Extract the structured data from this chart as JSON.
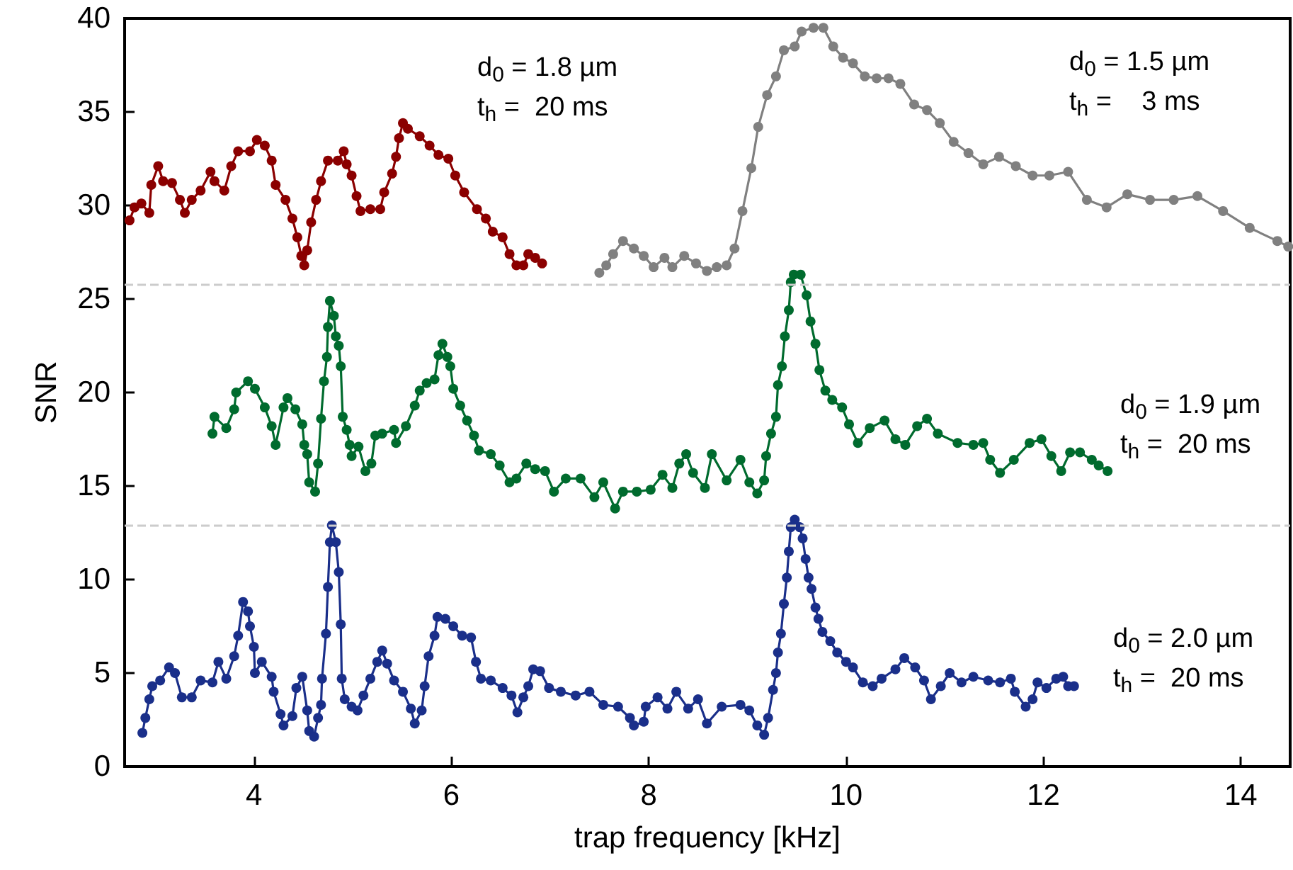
{
  "chart_data": {
    "type": "line",
    "xlabel": "trap frequency [kHz]",
    "ylabel": "SNR",
    "xlim": [
      2.69,
      14.5
    ],
    "xticks": [
      4,
      6,
      8,
      10,
      12,
      14
    ],
    "ylim": [
      0,
      40
    ],
    "yticks": [
      0,
      5,
      10,
      15,
      20,
      25,
      30,
      35,
      40
    ],
    "grid": false,
    "marker": "circle",
    "line_style": "solid",
    "series": [
      {
        "color": "#8b0000",
        "x": [
          2.74,
          2.79,
          2.86,
          2.94,
          2.96,
          3.03,
          3.08,
          3.17,
          3.25,
          3.3,
          3.37,
          3.46,
          3.56,
          3.6,
          3.7,
          3.77,
          3.84,
          3.96,
          4.03,
          4.11,
          4.18,
          4.22,
          4.32,
          4.39,
          4.44,
          4.48,
          4.51,
          4.54,
          4.58,
          4.63,
          4.68,
          4.75,
          4.85,
          4.91,
          4.94,
          4.99,
          5.04,
          5.08,
          5.18,
          5.28,
          5.32,
          5.4,
          5.44,
          5.47,
          5.51,
          5.56,
          5.68,
          5.78,
          5.87,
          5.97,
          6.04,
          6.13,
          6.26,
          6.35,
          6.42,
          6.52,
          6.59,
          6.66,
          6.73,
          6.78,
          6.85,
          6.92
        ],
        "values": [
          29.2,
          29.9,
          30.1,
          29.6,
          31.1,
          32.1,
          31.3,
          31.2,
          30.3,
          29.6,
          30.3,
          30.8,
          31.8,
          31.3,
          30.8,
          32.1,
          32.9,
          32.9,
          33.5,
          33.2,
          32.4,
          31.1,
          30.3,
          29.3,
          28.3,
          27.3,
          26.8,
          27.6,
          29.1,
          30.3,
          31.3,
          32.4,
          32.4,
          32.9,
          32.2,
          31.6,
          30.5,
          29.7,
          29.8,
          29.8,
          30.7,
          31.7,
          32.6,
          33.6,
          34.4,
          34.1,
          33.7,
          33.2,
          32.7,
          32.5,
          31.6,
          30.7,
          29.8,
          29.3,
          28.6,
          28.3,
          27.4,
          26.8,
          26.8,
          27.4,
          27.2,
          26.9
        ]
      },
      {
        "color": "#808080",
        "x": [
          7.5,
          7.57,
          7.64,
          7.74,
          7.85,
          7.95,
          8.05,
          8.16,
          8.24,
          8.36,
          8.48,
          8.59,
          8.69,
          8.79,
          8.87,
          8.95,
          9.04,
          9.11,
          9.2,
          9.29,
          9.37,
          9.48,
          9.55,
          9.67,
          9.77,
          9.87,
          9.97,
          10.07,
          10.19,
          10.31,
          10.43,
          10.55,
          10.69,
          10.82,
          10.95,
          11.09,
          11.24,
          11.39,
          11.55,
          11.72,
          11.89,
          12.06,
          12.25,
          12.44,
          12.64,
          12.85,
          13.08,
          13.32,
          13.56,
          13.82,
          14.09,
          14.37,
          14.48
        ],
        "values": [
          26.4,
          26.8,
          27.4,
          28.1,
          27.7,
          27.3,
          26.7,
          27.2,
          26.7,
          27.3,
          26.9,
          26.5,
          26.7,
          26.8,
          27.7,
          29.7,
          32.0,
          34.2,
          35.9,
          36.9,
          38.3,
          38.5,
          39.3,
          39.5,
          39.5,
          38.5,
          37.9,
          37.6,
          36.9,
          36.8,
          36.8,
          36.5,
          35.4,
          35.1,
          34.4,
          33.4,
          32.8,
          32.2,
          32.6,
          32.1,
          31.6,
          31.6,
          31.8,
          30.3,
          29.9,
          30.6,
          30.3,
          30.3,
          30.5,
          29.7,
          28.8,
          28.1,
          27.8
        ]
      },
      {
        "color": "#006b2e",
        "x": [
          3.58,
          3.6,
          3.72,
          3.8,
          3.82,
          3.94,
          4.01,
          4.11,
          4.18,
          4.22,
          4.3,
          4.34,
          4.42,
          4.49,
          4.51,
          4.54,
          4.56,
          4.62,
          4.65,
          4.68,
          4.71,
          4.74,
          4.75,
          4.77,
          4.81,
          4.83,
          4.86,
          4.88,
          4.9,
          4.94,
          4.97,
          4.99,
          5.06,
          5.13,
          5.19,
          5.23,
          5.3,
          5.42,
          5.44,
          5.54,
          5.63,
          5.68,
          5.75,
          5.83,
          5.87,
          5.91,
          5.96,
          5.99,
          6.02,
          6.09,
          6.16,
          6.23,
          6.28,
          6.4,
          6.49,
          6.59,
          6.66,
          6.76,
          6.85,
          6.95,
          7.04,
          7.16,
          7.31,
          7.45,
          7.54,
          7.66,
          7.74,
          7.88,
          8.02,
          8.14,
          8.24,
          8.31,
          8.38,
          8.45,
          8.57,
          8.64,
          8.79,
          8.93,
          9.02,
          9.1,
          9.17,
          9.19,
          9.24,
          9.29,
          9.31,
          9.35,
          9.38,
          9.42,
          9.44,
          9.47,
          9.54,
          9.6,
          9.64,
          9.69,
          9.73,
          9.79,
          9.86,
          9.96,
          10.03,
          10.12,
          10.24,
          10.39,
          10.5,
          10.6,
          10.72,
          10.82,
          10.93,
          11.13,
          11.29,
          11.39,
          11.46,
          11.56,
          11.7,
          11.86,
          11.98,
          12.08,
          12.18,
          12.27,
          12.37,
          12.49,
          12.56,
          12.65
        ],
        "values": [
          17.8,
          18.7,
          18.1,
          19.1,
          20.0,
          20.6,
          20.2,
          19.2,
          18.2,
          17.2,
          19.2,
          19.7,
          19.1,
          18.3,
          17.2,
          16.7,
          15.2,
          14.7,
          16.2,
          18.6,
          20.6,
          21.9,
          23.5,
          24.9,
          24.1,
          23.0,
          22.5,
          21.4,
          18.7,
          18.0,
          17.2,
          16.6,
          17.1,
          15.8,
          16.2,
          17.7,
          17.8,
          18.0,
          17.3,
          18.2,
          19.3,
          20.1,
          20.5,
          20.7,
          22.0,
          22.6,
          21.9,
          21.4,
          20.2,
          19.3,
          18.5,
          17.7,
          16.9,
          16.7,
          16.1,
          15.2,
          15.4,
          16.2,
          15.9,
          15.8,
          14.7,
          15.4,
          15.4,
          14.4,
          15.2,
          13.8,
          14.7,
          14.7,
          14.8,
          15.6,
          14.9,
          16.2,
          16.7,
          15.7,
          14.9,
          16.7,
          15.3,
          16.4,
          15.2,
          14.6,
          15.3,
          16.6,
          17.8,
          18.7,
          20.4,
          21.4,
          23.0,
          24.4,
          25.9,
          26.3,
          26.3,
          25.2,
          23.8,
          22.6,
          21.2,
          20.1,
          19.6,
          19.2,
          18.3,
          17.3,
          18.1,
          18.5,
          17.5,
          17.2,
          18.2,
          18.6,
          17.8,
          17.3,
          17.2,
          17.3,
          16.4,
          15.7,
          16.4,
          17.3,
          17.5,
          16.6,
          15.8,
          16.8,
          16.8,
          16.4,
          16.1,
          15.8
        ]
      },
      {
        "color": "#1a2f8a",
        "x": [
          2.87,
          2.9,
          2.94,
          2.97,
          3.05,
          3.14,
          3.2,
          3.27,
          3.37,
          3.46,
          3.58,
          3.64,
          3.72,
          3.8,
          3.84,
          3.89,
          3.94,
          3.96,
          4.0,
          4.01,
          4.08,
          4.18,
          4.2,
          4.27,
          4.3,
          4.39,
          4.43,
          4.49,
          4.54,
          4.56,
          4.61,
          4.65,
          4.68,
          4.69,
          4.73,
          4.75,
          4.77,
          4.79,
          4.83,
          4.86,
          4.88,
          4.89,
          4.92,
          4.99,
          5.05,
          5.11,
          5.18,
          5.25,
          5.3,
          5.35,
          5.42,
          5.51,
          5.59,
          5.63,
          5.7,
          5.73,
          5.77,
          5.83,
          5.86,
          5.94,
          6.02,
          6.11,
          6.2,
          6.25,
          6.3,
          6.4,
          6.52,
          6.61,
          6.67,
          6.73,
          6.78,
          6.83,
          6.9,
          6.99,
          7.11,
          7.26,
          7.4,
          7.54,
          7.69,
          7.81,
          7.85,
          7.95,
          7.97,
          8.09,
          8.19,
          8.28,
          8.4,
          8.5,
          8.59,
          8.74,
          8.93,
          9.02,
          9.1,
          9.17,
          9.21,
          9.26,
          9.29,
          9.31,
          9.34,
          9.37,
          9.4,
          9.42,
          9.44,
          9.48,
          9.53,
          9.56,
          9.59,
          9.62,
          9.65,
          9.69,
          9.72,
          9.76,
          9.84,
          9.91,
          10.0,
          10.07,
          10.17,
          10.27,
          10.36,
          10.5,
          10.59,
          10.7,
          10.79,
          10.86,
          10.96,
          11.05,
          11.17,
          11.29,
          11.44,
          11.56,
          11.67,
          11.71,
          11.82,
          11.89,
          11.94,
          12.03,
          12.13,
          12.2,
          12.25,
          12.31
        ],
        "values": [
          1.8,
          2.6,
          3.6,
          4.3,
          4.6,
          5.3,
          5.0,
          3.7,
          3.7,
          4.6,
          4.5,
          5.6,
          4.7,
          5.9,
          7.0,
          8.8,
          8.3,
          7.5,
          6.4,
          5.0,
          5.6,
          4.8,
          4.0,
          2.8,
          2.2,
          2.7,
          4.2,
          4.8,
          3.0,
          1.9,
          1.6,
          2.6,
          3.3,
          4.7,
          7.1,
          9.6,
          12.0,
          12.9,
          12.0,
          10.4,
          7.6,
          4.7,
          3.6,
          3.2,
          3.0,
          3.8,
          4.7,
          5.6,
          6.2,
          5.5,
          4.6,
          4.0,
          3.1,
          2.3,
          3.0,
          4.3,
          5.9,
          7.0,
          8.0,
          7.9,
          7.5,
          7.0,
          6.9,
          5.6,
          4.7,
          4.6,
          4.2,
          3.8,
          2.9,
          3.7,
          4.3,
          5.2,
          5.1,
          4.2,
          4.0,
          3.8,
          4.0,
          3.3,
          3.2,
          2.6,
          2.2,
          2.4,
          3.2,
          3.7,
          3.1,
          4.0,
          3.1,
          3.6,
          2.3,
          3.2,
          3.3,
          3.0,
          2.2,
          1.7,
          2.6,
          4.1,
          5.0,
          6.1,
          7.1,
          8.7,
          10.1,
          11.5,
          12.8,
          13.2,
          12.8,
          12.2,
          11.1,
          10.1,
          9.5,
          8.5,
          7.9,
          7.2,
          6.7,
          6.1,
          5.6,
          5.3,
          4.5,
          4.3,
          4.7,
          5.2,
          5.8,
          5.3,
          4.6,
          3.6,
          4.3,
          5.0,
          4.5,
          4.8,
          4.6,
          4.5,
          4.7,
          4.0,
          3.2,
          3.6,
          4.5,
          4.2,
          4.7,
          4.8,
          4.3,
          4.3
        ]
      }
    ],
    "ref_lines": [
      {
        "axis": "y",
        "value": 25.8,
        "color": "#cccccc",
        "line_style": "dashed"
      },
      {
        "axis": "y",
        "value": 12.9,
        "color": "#cccccc",
        "line_style": "dashed"
      }
    ],
    "annotations": [
      "d$_{0}$ = 1.8 µm\nt$_{h}$ =  20 ms",
      "d$_{0}$ = 1.5 µm\nt$_{h}$ =    3 ms",
      "d$_{0}$ = 1.9 µm\nt$_{h}$ =  20 ms",
      "d$_{0}$ = 2.0 µm\nt$_{h}$ =  20 ms"
    ]
  }
}
